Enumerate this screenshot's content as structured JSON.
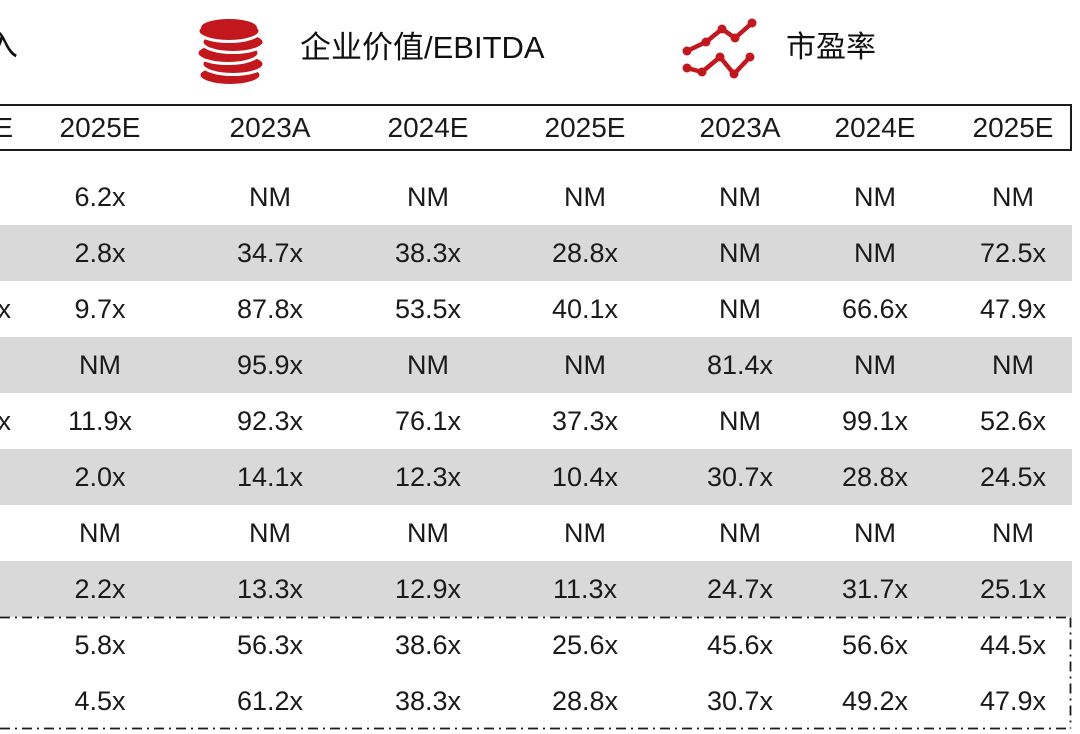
{
  "legend": {
    "revenue_partial": "入",
    "ev_ebitda_label": "企业价值/EBITDA",
    "pe_label": "市盈率",
    "icon_names": {
      "ev_ebitda": "coin-stack-icon",
      "pe": "line-chart-icon"
    },
    "accent_color": "#c2171d"
  },
  "table": {
    "header": [
      "E",
      "2025E",
      "2023A",
      "2024E",
      "2025E",
      "2023A",
      "2024E",
      "2025E"
    ],
    "rows": [
      {
        "shaded": false,
        "cells": [
          "",
          "6.2x",
          "NM",
          "NM",
          "NM",
          "NM",
          "NM",
          "NM"
        ]
      },
      {
        "shaded": true,
        "cells": [
          "",
          "2.8x",
          "34.7x",
          "38.3x",
          "28.8x",
          "NM",
          "NM",
          "72.5x"
        ]
      },
      {
        "shaded": false,
        "cells": [
          "x",
          "9.7x",
          "87.8x",
          "53.5x",
          "40.1x",
          "NM",
          "66.6x",
          "47.9x"
        ]
      },
      {
        "shaded": true,
        "cells": [
          "",
          "NM",
          "95.9x",
          "NM",
          "NM",
          "81.4x",
          "NM",
          "NM"
        ]
      },
      {
        "shaded": false,
        "cells": [
          "x",
          "11.9x",
          "92.3x",
          "76.1x",
          "37.3x",
          "NM",
          "99.1x",
          "52.6x"
        ]
      },
      {
        "shaded": true,
        "cells": [
          "",
          "2.0x",
          "14.1x",
          "12.3x",
          "10.4x",
          "30.7x",
          "28.8x",
          "24.5x"
        ]
      },
      {
        "shaded": false,
        "cells": [
          "",
          "NM",
          "NM",
          "NM",
          "NM",
          "NM",
          "NM",
          "NM"
        ]
      },
      {
        "shaded": true,
        "cells": [
          "",
          "2.2x",
          "13.3x",
          "12.9x",
          "11.3x",
          "24.7x",
          "31.7x",
          "25.1x"
        ]
      },
      {
        "shaded": false,
        "cells": [
          "",
          "5.8x",
          "56.3x",
          "38.6x",
          "25.6x",
          "45.6x",
          "56.6x",
          "44.5x"
        ],
        "in_dashed_box": true
      },
      {
        "shaded": false,
        "cells": [
          "",
          "4.5x",
          "61.2x",
          "38.3x",
          "28.8x",
          "30.7x",
          "49.2x",
          "47.9x"
        ],
        "in_dashed_box": true
      }
    ],
    "shading_color": "#d9d9d9",
    "border_color": "#1c1c1c"
  }
}
